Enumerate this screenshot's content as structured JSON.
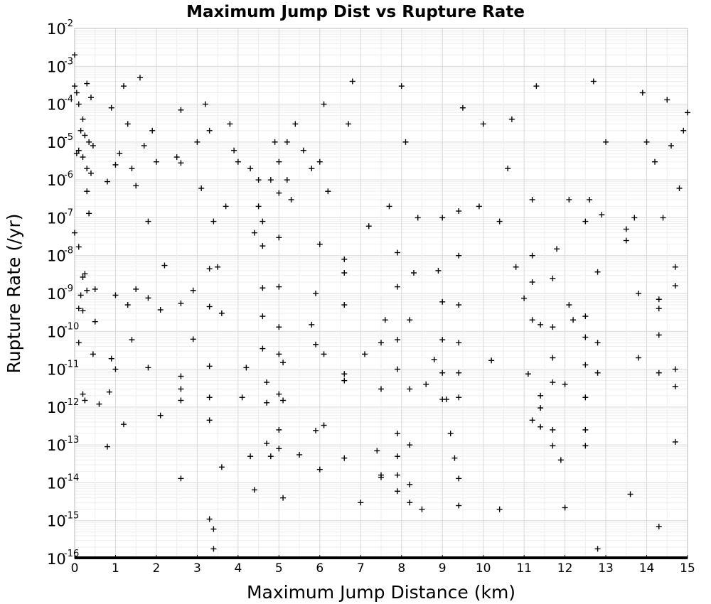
{
  "chart_data": {
    "type": "scatter",
    "title": "Maximum Jump Dist vs Rupture Rate",
    "xlabel": "Maximum Jump Distance (km)",
    "ylabel": "Rupture Rate (/yr)",
    "xlim": [
      0,
      15
    ],
    "ylim": [
      1e-16,
      0.01
    ],
    "yscale": "log",
    "marker": "plus",
    "marker_color": "#000000",
    "grid": true,
    "x_ticks": [
      "0",
      "1",
      "2",
      "3",
      "4",
      "5",
      "6",
      "7",
      "8",
      "9",
      "10",
      "11",
      "12",
      "13",
      "14",
      "15"
    ],
    "y_ticks": [
      {
        "base": "10",
        "exp": "-2"
      },
      {
        "base": "10",
        "exp": "-3"
      },
      {
        "base": "10",
        "exp": "-4"
      },
      {
        "base": "10",
        "exp": "-5"
      },
      {
        "base": "10",
        "exp": "-6"
      },
      {
        "base": "10",
        "exp": "-7"
      },
      {
        "base": "10",
        "exp": "-8"
      },
      {
        "base": "10",
        "exp": "-9"
      },
      {
        "base": "10",
        "exp": "-10"
      },
      {
        "base": "10",
        "exp": "-11"
      },
      {
        "base": "10",
        "exp": "-12"
      },
      {
        "base": "10",
        "exp": "-13"
      },
      {
        "base": "10",
        "exp": "-14"
      },
      {
        "base": "10",
        "exp": "-15"
      },
      {
        "base": "10",
        "exp": "-16"
      }
    ],
    "points": [
      [
        0.0,
        0.002
      ],
      [
        0.0,
        0.0003
      ],
      [
        0.05,
        0.0002
      ],
      [
        0.1,
        0.0001
      ],
      [
        0.2,
        4e-05
      ],
      [
        0.3,
        0.00035
      ],
      [
        0.4,
        0.00015
      ],
      [
        0.15,
        2e-05
      ],
      [
        0.25,
        1.5e-05
      ],
      [
        0.35,
        1e-05
      ],
      [
        0.45,
        8e-06
      ],
      [
        0.1,
        6e-06
      ],
      [
        0.2,
        4e-06
      ],
      [
        0.3,
        2e-06
      ],
      [
        0.4,
        1.5e-06
      ],
      [
        0.05,
        5e-06
      ],
      [
        0.3,
        5e-07
      ],
      [
        0.35,
        1.3e-07
      ],
      [
        0.0,
        4e-08
      ],
      [
        0.1,
        1.7e-08
      ],
      [
        0.2,
        2.7e-09
      ],
      [
        0.25,
        3.3e-09
      ],
      [
        0.15,
        9e-10
      ],
      [
        0.3,
        1.2e-09
      ],
      [
        0.5,
        1.3e-09
      ],
      [
        0.1,
        4e-10
      ],
      [
        0.2,
        3.5e-10
      ],
      [
        0.5,
        1.8e-10
      ],
      [
        0.1,
        5e-11
      ],
      [
        0.45,
        2.5e-11
      ],
      [
        0.2,
        2.2e-12
      ],
      [
        0.25,
        1.5e-12
      ],
      [
        0.6,
        1.2e-12
      ],
      [
        0.8,
        9e-14
      ],
      [
        0.85,
        2.5e-12
      ],
      [
        0.9,
        1.9e-11
      ],
      [
        1.0,
        1e-11
      ],
      [
        1.2,
        3.5e-13
      ],
      [
        0.8,
        9e-07
      ],
      [
        0.9,
        8e-05
      ],
      [
        1.0,
        2.5e-06
      ],
      [
        1.1,
        5e-06
      ],
      [
        1.2,
        0.0003
      ],
      [
        1.3,
        3e-05
      ],
      [
        1.4,
        2e-06
      ],
      [
        1.5,
        7e-07
      ],
      [
        1.6,
        0.0005
      ],
      [
        1.7,
        8e-06
      ],
      [
        1.8,
        8e-08
      ],
      [
        1.9,
        2e-05
      ],
      [
        2.0,
        3e-06
      ],
      [
        2.1,
        6e-13
      ],
      [
        1.0,
        9e-10
      ],
      [
        1.3,
        5e-10
      ],
      [
        1.4,
        6e-11
      ],
      [
        1.5,
        1.3e-09
      ],
      [
        1.8,
        7.6e-10
      ],
      [
        1.8,
        1.1e-11
      ],
      [
        2.1,
        3.7e-10
      ],
      [
        2.2,
        5.5e-09
      ],
      [
        2.5,
        4e-06
      ],
      [
        2.6,
        7e-05
      ],
      [
        2.6,
        2.8e-06
      ],
      [
        2.6,
        5.5e-10
      ],
      [
        2.6,
        3e-12
      ],
      [
        2.6,
        6.5e-12
      ],
      [
        2.6,
        1.3e-14
      ],
      [
        2.6,
        1.5e-12
      ],
      [
        2.9,
        1.2e-09
      ],
      [
        2.9,
        6.2e-11
      ],
      [
        3.0,
        1e-05
      ],
      [
        3.1,
        6e-07
      ],
      [
        3.2,
        0.0001
      ],
      [
        3.3,
        2e-05
      ],
      [
        3.3,
        4.5e-09
      ],
      [
        3.3,
        4.5e-10
      ],
      [
        3.3,
        1.2e-11
      ],
      [
        3.3,
        1.8e-12
      ],
      [
        3.3,
        4.5e-13
      ],
      [
        3.3,
        1.1e-15
      ],
      [
        3.4,
        6e-16
      ],
      [
        3.4,
        1.8e-16
      ],
      [
        3.4,
        8e-08
      ],
      [
        3.5,
        5e-09
      ],
      [
        3.6,
        2.6e-14
      ],
      [
        3.6,
        3e-10
      ],
      [
        3.7,
        2e-07
      ],
      [
        3.8,
        3e-05
      ],
      [
        3.9,
        6e-06
      ],
      [
        4.0,
        3e-06
      ],
      [
        4.1,
        1.8e-12
      ],
      [
        4.2,
        1.1e-11
      ],
      [
        4.3,
        2e-06
      ],
      [
        4.3,
        5e-14
      ],
      [
        4.4,
        6.5e-15
      ],
      [
        4.4,
        4e-08
      ],
      [
        4.5,
        1e-06
      ],
      [
        4.5,
        2e-07
      ],
      [
        4.6,
        8e-08
      ],
      [
        4.6,
        1.8e-08
      ],
      [
        4.6,
        1.4e-09
      ],
      [
        4.6,
        2.5e-10
      ],
      [
        4.6,
        3.5e-11
      ],
      [
        4.7,
        4.5e-12
      ],
      [
        4.7,
        1.3e-12
      ],
      [
        4.7,
        1.1e-13
      ],
      [
        4.8,
        5e-14
      ],
      [
        4.8,
        1e-06
      ],
      [
        4.9,
        1e-05
      ],
      [
        5.0,
        3e-06
      ],
      [
        5.0,
        4.5e-07
      ],
      [
        5.0,
        3e-08
      ],
      [
        5.0,
        1.5e-09
      ],
      [
        5.0,
        1.3e-10
      ],
      [
        5.0,
        2.5e-11
      ],
      [
        5.0,
        2.2e-12
      ],
      [
        5.0,
        2.5e-13
      ],
      [
        5.0,
        8e-14
      ],
      [
        5.1,
        4e-15
      ],
      [
        5.1,
        1.5e-11
      ],
      [
        5.1,
        1.5e-12
      ],
      [
        5.2,
        1e-05
      ],
      [
        5.2,
        1e-06
      ],
      [
        5.3,
        3e-07
      ],
      [
        5.4,
        3e-05
      ],
      [
        5.5,
        5.5e-14
      ],
      [
        5.6,
        6e-06
      ],
      [
        5.8,
        2e-06
      ],
      [
        5.9,
        2.4e-13
      ],
      [
        6.0,
        2.25e-14
      ],
      [
        6.1,
        3.3e-13
      ],
      [
        6.1,
        2.5e-11
      ],
      [
        6.2,
        5e-07
      ],
      [
        5.9,
        1e-09
      ],
      [
        5.8,
        1.5e-10
      ],
      [
        5.9,
        4.5e-11
      ],
      [
        6.0,
        2e-08
      ],
      [
        6.0,
        3e-06
      ],
      [
        6.1,
        0.0001
      ],
      [
        6.6,
        4.5e-14
      ],
      [
        6.6,
        7.5e-12
      ],
      [
        6.6,
        5e-12
      ],
      [
        6.6,
        5e-10
      ],
      [
        6.6,
        3.5e-09
      ],
      [
        6.6,
        8e-09
      ],
      [
        6.7,
        3e-05
      ],
      [
        6.8,
        0.0004
      ],
      [
        7.0,
        3e-15
      ],
      [
        7.1,
        2.5e-11
      ],
      [
        7.2,
        6e-08
      ],
      [
        7.4,
        7e-14
      ],
      [
        7.5,
        1.6e-14
      ],
      [
        7.5,
        1.4e-14
      ],
      [
        7.5,
        3e-12
      ],
      [
        7.5,
        5e-11
      ],
      [
        7.6,
        2e-10
      ],
      [
        7.7,
        2e-07
      ],
      [
        7.9,
        6e-15
      ],
      [
        7.9,
        1.6e-14
      ],
      [
        7.9,
        5e-14
      ],
      [
        7.9,
        2e-13
      ],
      [
        7.9,
        1e-11
      ],
      [
        7.9,
        6e-11
      ],
      [
        7.9,
        1.5e-09
      ],
      [
        7.9,
        1.2e-08
      ],
      [
        8.0,
        0.0003
      ],
      [
        8.1,
        1e-05
      ],
      [
        8.2,
        3e-15
      ],
      [
        8.2,
        9e-15
      ],
      [
        8.2,
        1e-13
      ],
      [
        8.2,
        3e-12
      ],
      [
        8.2,
        2e-10
      ],
      [
        8.3,
        3.5e-09
      ],
      [
        8.4,
        1e-07
      ],
      [
        8.5,
        2e-15
      ],
      [
        8.6,
        4e-12
      ],
      [
        8.8,
        1.8e-11
      ],
      [
        8.9,
        4e-09
      ],
      [
        9.0,
        1e-07
      ],
      [
        9.0,
        1.6e-12
      ],
      [
        9.0,
        8e-12
      ],
      [
        9.0,
        6e-11
      ],
      [
        9.0,
        6e-10
      ],
      [
        9.1,
        1.6e-12
      ],
      [
        9.2,
        2e-13
      ],
      [
        9.3,
        4.5e-14
      ],
      [
        9.4,
        1.3e-14
      ],
      [
        9.4,
        2.5e-15
      ],
      [
        9.4,
        1.8e-12
      ],
      [
        9.4,
        8e-12
      ],
      [
        9.4,
        5e-11
      ],
      [
        9.4,
        5e-10
      ],
      [
        9.4,
        1e-08
      ],
      [
        9.4,
        1.5e-07
      ],
      [
        9.5,
        8e-05
      ],
      [
        9.9,
        2e-07
      ],
      [
        10.0,
        3e-05
      ],
      [
        10.2,
        1.7e-11
      ],
      [
        10.4,
        2e-15
      ],
      [
        10.4,
        8e-08
      ],
      [
        10.6,
        2e-06
      ],
      [
        10.7,
        4e-05
      ],
      [
        10.8,
        5e-09
      ],
      [
        11.0,
        7.5e-10
      ],
      [
        11.1,
        7.5e-12
      ],
      [
        11.2,
        4.5e-13
      ],
      [
        11.2,
        2e-10
      ],
      [
        11.2,
        2e-09
      ],
      [
        11.2,
        1e-08
      ],
      [
        11.2,
        3e-07
      ],
      [
        11.3,
        0.0003
      ],
      [
        11.4,
        9.5e-13
      ],
      [
        11.4,
        2e-12
      ],
      [
        11.4,
        1.5e-10
      ],
      [
        11.4,
        3e-13
      ],
      [
        11.7,
        9.5e-14
      ],
      [
        11.7,
        2.5e-13
      ],
      [
        11.7,
        4.5e-12
      ],
      [
        11.7,
        2e-11
      ],
      [
        11.7,
        1.3e-10
      ],
      [
        11.7,
        2.5e-09
      ],
      [
        11.8,
        1.5e-08
      ],
      [
        11.9,
        4e-14
      ],
      [
        12.0,
        2.2e-15
      ],
      [
        12.0,
        4e-12
      ],
      [
        12.1,
        3e-07
      ],
      [
        12.1,
        5e-10
      ],
      [
        12.2,
        2e-10
      ],
      [
        12.5,
        9.5e-14
      ],
      [
        12.5,
        2.5e-13
      ],
      [
        12.5,
        1.8e-12
      ],
      [
        12.5,
        1.3e-11
      ],
      [
        12.5,
        7e-11
      ],
      [
        12.5,
        2.5e-10
      ],
      [
        12.5,
        8e-08
      ],
      [
        12.6,
        3e-07
      ],
      [
        12.7,
        0.0004
      ],
      [
        12.8,
        1.8e-16
      ],
      [
        12.8,
        8e-12
      ],
      [
        12.8,
        5e-11
      ],
      [
        12.8,
        3.7e-09
      ],
      [
        12.9,
        1.2e-07
      ],
      [
        13.0,
        1e-05
      ],
      [
        13.5,
        5e-08
      ],
      [
        13.5,
        2.5e-08
      ],
      [
        13.6,
        5e-15
      ],
      [
        13.7,
        1e-07
      ],
      [
        13.8,
        2e-11
      ],
      [
        13.8,
        1e-09
      ],
      [
        13.9,
        0.0002
      ],
      [
        14.0,
        1e-05
      ],
      [
        14.2,
        3e-06
      ],
      [
        14.3,
        7e-16
      ],
      [
        14.3,
        8e-12
      ],
      [
        14.3,
        8e-11
      ],
      [
        14.3,
        4e-10
      ],
      [
        14.3,
        7e-10
      ],
      [
        14.4,
        1e-07
      ],
      [
        14.5,
        0.00013
      ],
      [
        14.6,
        8e-06
      ],
      [
        14.7,
        1.2e-13
      ],
      [
        14.7,
        3.5e-12
      ],
      [
        14.7,
        1e-11
      ],
      [
        14.7,
        1.6e-09
      ],
      [
        14.7,
        5e-09
      ],
      [
        14.8,
        6e-07
      ],
      [
        14.9,
        2e-05
      ],
      [
        15.0,
        6e-05
      ]
    ],
    "floor_value": 1e-16
  }
}
